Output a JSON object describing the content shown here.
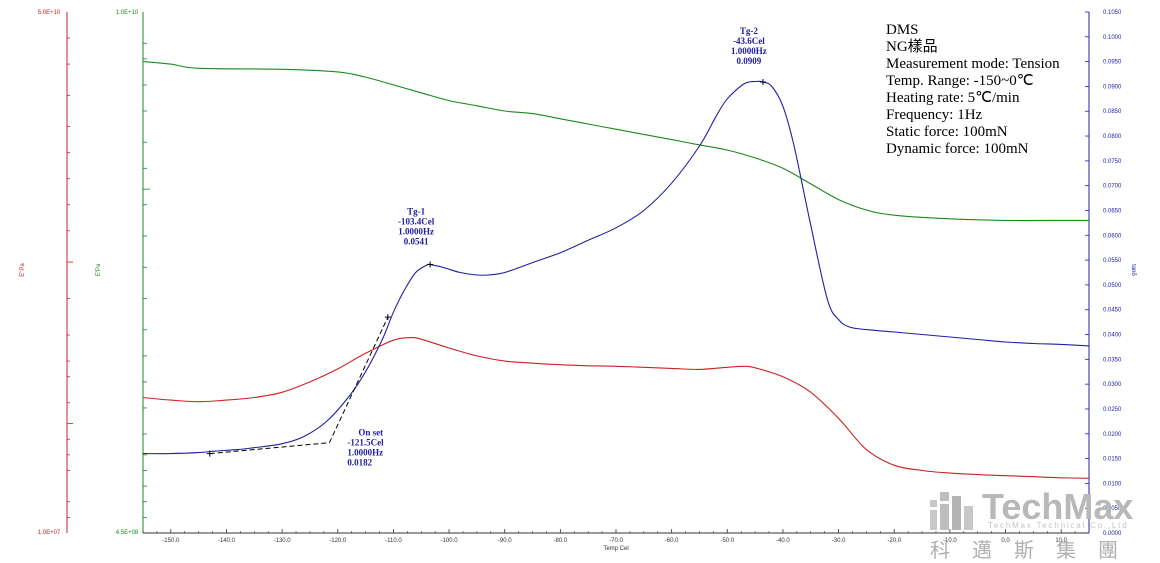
{
  "chart_data": {
    "type": "line",
    "xlabel": "Temp Cel",
    "xlim": [
      -155,
      15
    ],
    "x_ticks": [
      "-150.0",
      "-140.0",
      "-130.0",
      "-120.0",
      "-110.0",
      "-100.0",
      "-90.0",
      "-80.0",
      "-70.0",
      "-60.0",
      "-50.0",
      "-40.0",
      "-30.0",
      "-20.0",
      "-10.0",
      "0.0",
      "10.0"
    ],
    "axes": {
      "red": {
        "label": "E\"Pa",
        "top_label": "5.0E+10",
        "bottom_label": "1.0E+07",
        "color": "#cc2222"
      },
      "green": {
        "label": "E'Pa",
        "top_label": "1.0E+10",
        "bottom_label": "4.5E+08",
        "color": "#1a8a1a"
      },
      "right": {
        "label": "tanδ",
        "ylim": [
          0.0,
          0.105
        ],
        "color": "#2222aa",
        "ticks": [
          "0.1050",
          "0.1000",
          "0.0950",
          "0.0900",
          "0.0850",
          "0.0800",
          "0.0750",
          "0.0700",
          "0.0650",
          "0.0600",
          "0.0550",
          "0.0500",
          "0.0450",
          "0.0400",
          "0.0350",
          "0.0300",
          "0.0250",
          "0.0200",
          "0.0150",
          "0.0100",
          "0.0050",
          "0.0000"
        ]
      }
    },
    "series": [
      {
        "color": "#1a8a1a",
        "axis": "green",
        "x": [
          -155,
          -150,
          -145,
          -130,
          -120,
          -115,
          -110,
          -105,
          -100,
          -95,
          -90,
          -85,
          -80,
          -75,
          -70,
          -65,
          -60,
          -55,
          -50,
          -45,
          -40,
          -35,
          -30,
          -25,
          -20,
          -10,
          0,
          10,
          15
        ],
        "y_frac": [
          0.905,
          0.9,
          0.892,
          0.89,
          0.885,
          0.875,
          0.86,
          0.845,
          0.83,
          0.82,
          0.81,
          0.805,
          0.795,
          0.785,
          0.775,
          0.765,
          0.755,
          0.745,
          0.735,
          0.72,
          0.7,
          0.67,
          0.64,
          0.62,
          0.61,
          0.603,
          0.6,
          0.6,
          0.6
        ]
      },
      {
        "color": "#cc2222",
        "axis": "red",
        "x": [
          -155,
          -150,
          -145,
          -140,
          -135,
          -130,
          -125,
          -120,
          -115,
          -110,
          -107,
          -105,
          -100,
          -95,
          -90,
          -85,
          -80,
          -75,
          -70,
          -65,
          -60,
          -55,
          -50,
          -47,
          -45,
          -40,
          -35,
          -30,
          -25,
          -20,
          -15,
          -10,
          -5,
          0,
          5,
          10,
          15
        ],
        "y_frac": [
          0.26,
          0.255,
          0.252,
          0.255,
          0.26,
          0.27,
          0.29,
          0.315,
          0.345,
          0.37,
          0.375,
          0.372,
          0.355,
          0.34,
          0.33,
          0.326,
          0.323,
          0.321,
          0.32,
          0.318,
          0.316,
          0.314,
          0.318,
          0.32,
          0.317,
          0.3,
          0.27,
          0.22,
          0.16,
          0.13,
          0.12,
          0.115,
          0.112,
          0.11,
          0.108,
          0.106,
          0.105
        ]
      },
      {
        "color": "#2020a0",
        "axis": "right",
        "x": [
          -155,
          -150,
          -145,
          -142,
          -138,
          -135,
          -130,
          -126,
          -122,
          -118,
          -115,
          -112,
          -110,
          -108,
          -106,
          -104,
          -103.4,
          -101,
          -98,
          -95,
          -93,
          -90,
          -85,
          -80,
          -75,
          -70,
          -65,
          -60,
          -55,
          -52,
          -50,
          -47,
          -45,
          -43.6,
          -42,
          -40,
          -38,
          -35,
          -32,
          -30,
          -28,
          -25,
          -20,
          -15,
          -10,
          -5,
          0,
          5,
          10,
          15
        ],
        "y": [
          0.016,
          0.016,
          0.0162,
          0.0165,
          0.0168,
          0.0172,
          0.018,
          0.0195,
          0.0225,
          0.0275,
          0.0325,
          0.039,
          0.0445,
          0.049,
          0.0525,
          0.054,
          0.0541,
          0.0535,
          0.0525,
          0.052,
          0.052,
          0.0525,
          0.0545,
          0.0565,
          0.059,
          0.0615,
          0.065,
          0.0705,
          0.078,
          0.084,
          0.0875,
          0.0905,
          0.091,
          0.0909,
          0.09,
          0.086,
          0.078,
          0.062,
          0.047,
          0.043,
          0.0415,
          0.041,
          0.0405,
          0.04,
          0.0395,
          0.039,
          0.0385,
          0.0382,
          0.038,
          0.0377
        ]
      }
    ],
    "tangent_x": [
      -143,
      -121.5,
      -111
    ],
    "tangent_y": [
      0.016,
      0.0182,
      0.0435
    ],
    "markers": [
      {
        "x": -103.4,
        "y": 0.0541
      },
      {
        "x": -43.6,
        "y": 0.0909
      },
      {
        "x": -143,
        "y": 0.016
      },
      {
        "x": -111,
        "y": 0.0435
      }
    ],
    "annotations": [
      {
        "lines": [
          "Tg-1",
          "-103.4Cel",
          "1.0000Hz",
          "0.0541"
        ],
        "x": -103.4,
        "y": 0.0541
      },
      {
        "lines": [
          "Tg-2",
          "-43.6Cel",
          "1.0000Hz",
          "0.0909"
        ],
        "x": -43.6,
        "y": 0.0909
      },
      {
        "lines": [
          "On set",
          "-121.5Cel",
          "1.0000Hz",
          "0.0182"
        ],
        "x": -121.5,
        "y": 0.0182
      }
    ]
  },
  "info_box": [
    "DMS",
    "NG樣品",
    "Measurement mode: Tension",
    "Temp. Range: -150~0℃",
    "Heating rate: 5℃/min",
    "Frequency: 1Hz",
    "Static force: 100mN",
    "Dynamic force: 100mN"
  ],
  "logo": {
    "name": "TechMax",
    "subtitle": "TechMax Technical Co.,Ltd",
    "chinese": "科邁斯集團"
  }
}
